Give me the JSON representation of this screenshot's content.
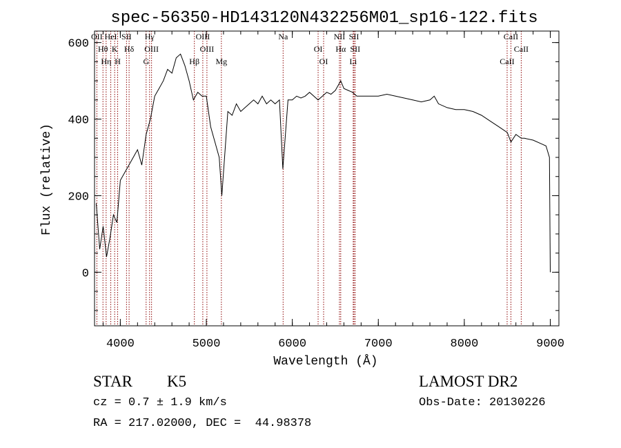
{
  "chart_data": {
    "type": "line",
    "title": "spec-56350-HD143120N432256M01_sp16-122.fits",
    "xlabel": "Wavelength (Å)",
    "ylabel": "Flux (relative)",
    "xlim": [
      3700,
      9100
    ],
    "ylim": [
      -140,
      630
    ],
    "xticks": [
      4000,
      5000,
      6000,
      7000,
      8000,
      9000
    ],
    "yticks": [
      0,
      200,
      400,
      600
    ],
    "grid": false,
    "line_color": "#000000",
    "marker_color": "#8b0000",
    "series": [
      {
        "x": [
          3720,
          3760,
          3800,
          3840,
          3880,
          3920,
          3960,
          4000,
          4050,
          4100,
          4150,
          4200,
          4250,
          4300,
          4350,
          4400,
          4450,
          4500,
          4550,
          4600,
          4650,
          4700,
          4750,
          4800,
          4850,
          4900,
          4950,
          5000,
          5050,
          5100,
          5150,
          5180,
          5250,
          5300,
          5350,
          5400,
          5450,
          5500,
          5550,
          5600,
          5650,
          5700,
          5750,
          5800,
          5850,
          5890,
          5950,
          6000,
          6050,
          6100,
          6150,
          6200,
          6250,
          6300,
          6350,
          6400,
          6450,
          6500,
          6563,
          6600,
          6650,
          6700,
          6750,
          6800,
          6900,
          7000,
          7100,
          7200,
          7300,
          7400,
          7500,
          7600,
          7650,
          7700,
          7800,
          7900,
          8000,
          8100,
          8200,
          8300,
          8400,
          8500,
          8542,
          8600,
          8662,
          8700,
          8800,
          8900,
          8950,
          8990,
          9000
        ],
        "y": [
          180,
          60,
          120,
          40,
          90,
          150,
          130,
          240,
          260,
          280,
          300,
          320,
          280,
          360,
          400,
          460,
          480,
          500,
          530,
          520,
          560,
          570,
          540,
          500,
          450,
          470,
          460,
          460,
          380,
          340,
          300,
          200,
          420,
          410,
          440,
          420,
          430,
          440,
          450,
          440,
          460,
          440,
          450,
          440,
          450,
          270,
          450,
          450,
          460,
          455,
          460,
          470,
          460,
          450,
          460,
          470,
          465,
          475,
          500,
          480,
          475,
          470,
          460,
          460,
          460,
          460,
          465,
          460,
          455,
          450,
          445,
          450,
          460,
          440,
          430,
          425,
          425,
          420,
          410,
          395,
          380,
          365,
          340,
          360,
          350,
          350,
          345,
          335,
          330,
          300,
          0
        ]
      }
    ],
    "lines": [
      {
        "wl": 3727,
        "label": "OII"
      },
      {
        "wl": 3798,
        "label": "Hθ"
      },
      {
        "wl": 3835,
        "label": "Hη"
      },
      {
        "wl": 3889,
        "label": "HeI"
      },
      {
        "wl": 3934,
        "label": "K"
      },
      {
        "wl": 3969,
        "label": "H"
      },
      {
        "wl": 4072,
        "label": "SII"
      },
      {
        "wl": 4102,
        "label": "Hδ"
      },
      {
        "wl": 4300,
        "label": "G"
      },
      {
        "wl": 4340,
        "label": "Hγ"
      },
      {
        "wl": 4363,
        "label": "OIII"
      },
      {
        "wl": 4861,
        "label": "Hβ"
      },
      {
        "wl": 4959,
        "label": "OIII"
      },
      {
        "wl": 5007,
        "label": "OIII"
      },
      {
        "wl": 5175,
        "label": "Mg"
      },
      {
        "wl": 5893,
        "label": "Na"
      },
      {
        "wl": 6300,
        "label": "OI"
      },
      {
        "wl": 6364,
        "label": "OI"
      },
      {
        "wl": 6548,
        "label": "NII"
      },
      {
        "wl": 6563,
        "label": "Hα"
      },
      {
        "wl": 6708,
        "label": "Li"
      },
      {
        "wl": 6717,
        "label": "SII"
      },
      {
        "wl": 6731,
        "label": "SII"
      },
      {
        "wl": 8498,
        "label": "CaII"
      },
      {
        "wl": 8542,
        "label": "CaII"
      },
      {
        "wl": 8662,
        "label": "CaII"
      }
    ]
  },
  "info": {
    "class": "STAR",
    "subclass": "K5",
    "cz": "cz = 0.7 ± 1.9 km/s",
    "radec": "RA = 217.02000, DEC =  44.98378",
    "survey": "LAMOST DR2",
    "obsdate": "Obs-Date: 20130226"
  }
}
